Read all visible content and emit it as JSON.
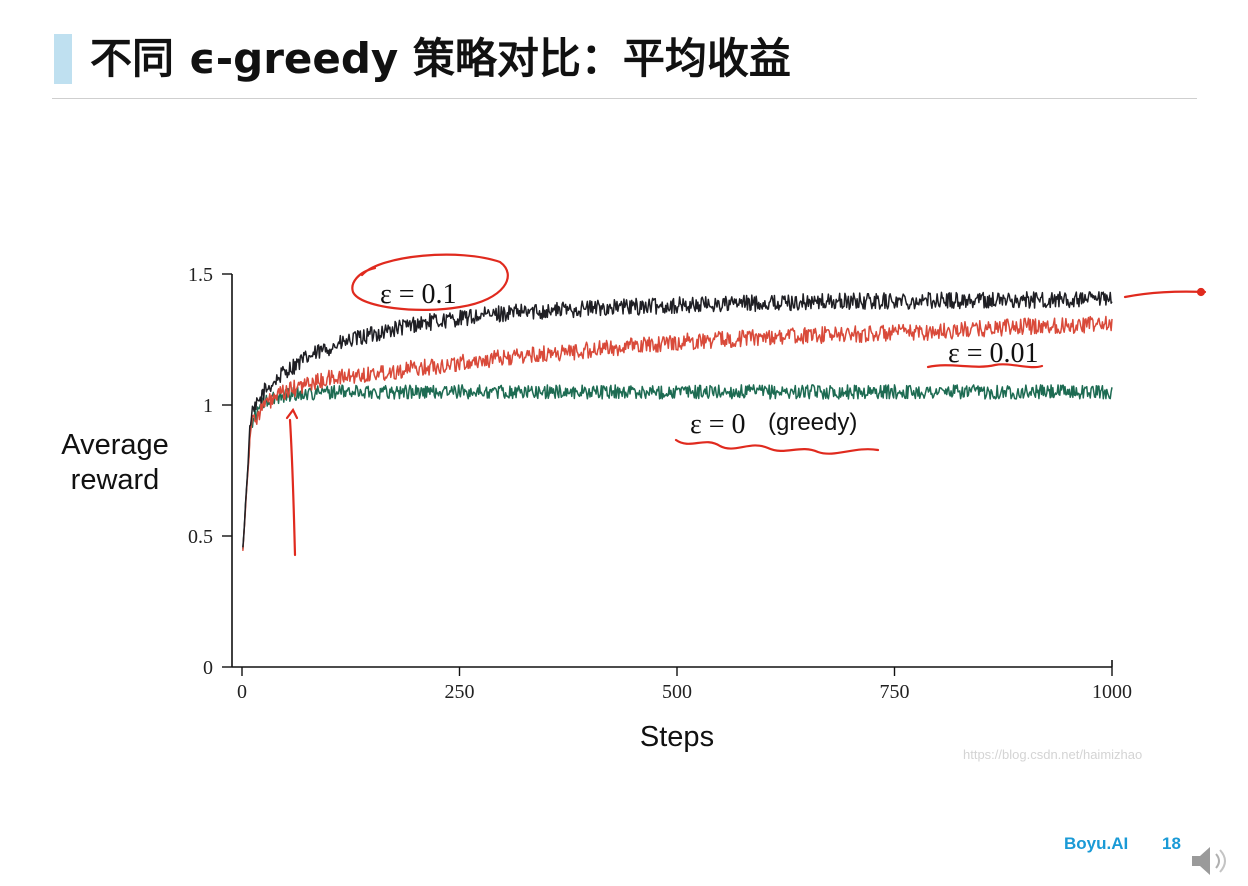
{
  "slide": {
    "title": "不同 ϵ-greedy 策略对比：平均收益",
    "brand": "Boyu.AI",
    "page_number": "18",
    "watermark": "https://blog.csdn.net/haimizhao",
    "title_bar_color": "#bfe0f0",
    "brand_color": "#1a9ad6"
  },
  "chart_data": {
    "type": "line",
    "title": "",
    "xlabel": "Steps",
    "ylabel": [
      "Average",
      "reward"
    ],
    "xlim": [
      0,
      1000
    ],
    "ylim": [
      0,
      1.5
    ],
    "x_ticks": [
      "0",
      "250",
      "500",
      "750",
      "1000"
    ],
    "y_ticks": [
      "0",
      "0.5",
      "1",
      "1.5"
    ],
    "grid": false,
    "series": [
      {
        "name": "ε = 0.1",
        "color": "#1f1f24",
        "x": [
          1,
          10,
          25,
          50,
          75,
          100,
          150,
          200,
          250,
          300,
          400,
          500,
          600,
          700,
          800,
          900,
          1000
        ],
        "values": [
          0.45,
          0.95,
          1.05,
          1.13,
          1.18,
          1.22,
          1.27,
          1.31,
          1.33,
          1.35,
          1.37,
          1.38,
          1.39,
          1.395,
          1.4,
          1.4,
          1.4
        ]
      },
      {
        "name": "ε = 0.01",
        "color": "#d94a3a",
        "x": [
          1,
          10,
          25,
          50,
          75,
          100,
          150,
          200,
          250,
          300,
          400,
          500,
          600,
          700,
          800,
          900,
          1000
        ],
        "values": [
          0.45,
          0.92,
          1.0,
          1.05,
          1.08,
          1.1,
          1.12,
          1.14,
          1.16,
          1.18,
          1.21,
          1.24,
          1.26,
          1.27,
          1.28,
          1.3,
          1.31
        ]
      },
      {
        "name": "ε = 0 (greedy)",
        "color": "#1d6b52",
        "x": [
          1,
          10,
          25,
          50,
          75,
          100,
          150,
          200,
          250,
          300,
          400,
          500,
          600,
          700,
          800,
          900,
          1000
        ],
        "values": [
          0.45,
          0.93,
          1.01,
          1.04,
          1.045,
          1.05,
          1.05,
          1.05,
          1.05,
          1.05,
          1.05,
          1.05,
          1.05,
          1.05,
          1.05,
          1.05,
          1.05
        ]
      }
    ],
    "label_text": {
      "eps01": "ε = 0.1",
      "eps001": "ε = 0.01",
      "eps0": "ε = 0",
      "greedy": "(greedy)"
    },
    "annotation_color": "#e02a1e"
  }
}
